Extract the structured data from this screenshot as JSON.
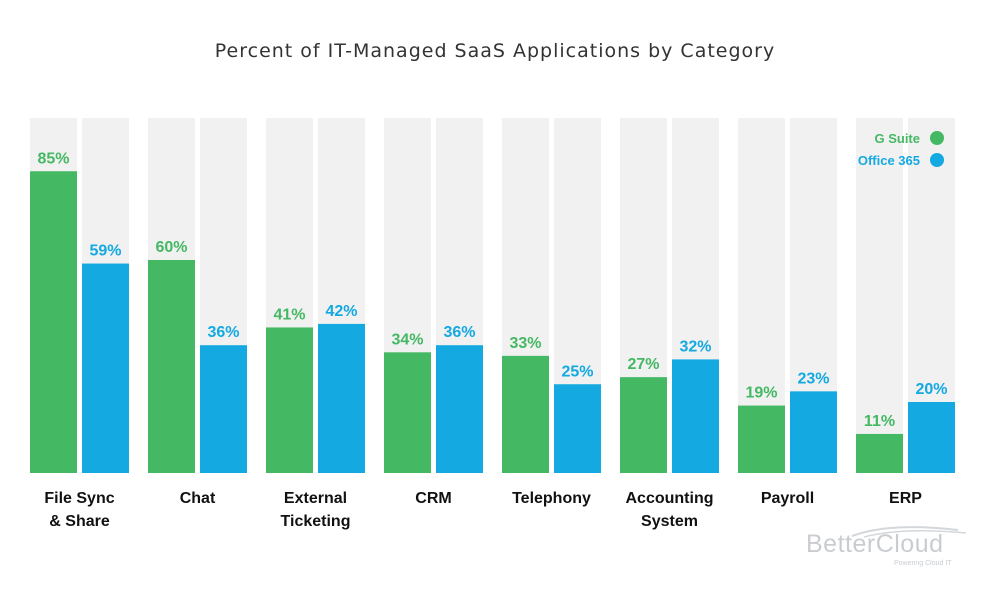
{
  "chart_data": {
    "type": "bar",
    "title": "Percent of IT-Managed SaaS Applications by Category",
    "categories": [
      [
        "File Sync",
        "& Share"
      ],
      [
        "Chat"
      ],
      [
        "External",
        "Ticketing"
      ],
      [
        "CRM"
      ],
      [
        "Telephony"
      ],
      [
        "Accounting",
        "System"
      ],
      [
        "Payroll"
      ],
      [
        "ERP"
      ]
    ],
    "series": [
      {
        "name": "G Suite",
        "color": "#45b864",
        "values": [
          85,
          60,
          41,
          34,
          33,
          27,
          19,
          11
        ],
        "labels": [
          "85%",
          "60%",
          "41%",
          "34%",
          "33%",
          "27%",
          "19%",
          "11%"
        ]
      },
      {
        "name": "Office 365",
        "color": "#14a9e1",
        "values": [
          59,
          36,
          42,
          36,
          25,
          32,
          23,
          20
        ],
        "labels": [
          "59%",
          "36%",
          "42%",
          "36%",
          "25%",
          "32%",
          "23%",
          "20%"
        ]
      }
    ],
    "ylim": [
      0,
      100
    ],
    "background_bar_color": "#f1f1f1",
    "legend_position": "top-right",
    "grid": false
  },
  "watermark": {
    "name": "BetterCloud",
    "tagline": "Powering Cloud IT"
  }
}
